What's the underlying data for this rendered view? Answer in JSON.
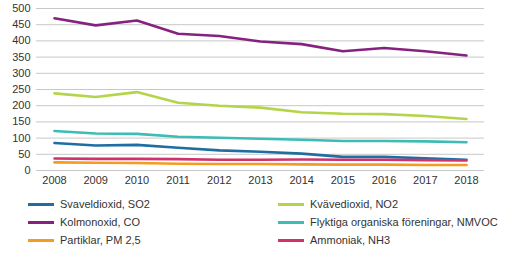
{
  "chart_data": {
    "type": "line",
    "x": [
      2008,
      2009,
      2010,
      2011,
      2012,
      2013,
      2014,
      2015,
      2016,
      2017,
      2018
    ],
    "xlim": [
      2008,
      2018
    ],
    "xticks": [
      2008,
      2009,
      2010,
      2011,
      2012,
      2013,
      2014,
      2015,
      2016,
      2017,
      2018
    ],
    "ylim": [
      0,
      500
    ],
    "yticks": [
      0,
      50,
      100,
      150,
      200,
      250,
      300,
      350,
      400,
      450,
      500
    ],
    "grid": true,
    "legend": "bottom",
    "series": [
      {
        "name": "Svaveldioxid, SO2",
        "color": "#1f6ea3",
        "values": [
          85,
          77,
          79,
          70,
          62,
          58,
          52,
          42,
          42,
          38,
          33
        ]
      },
      {
        "name": "Kvävedioxid, NO2",
        "color": "#b4d44a",
        "values": [
          238,
          227,
          242,
          209,
          200,
          194,
          180,
          175,
          174,
          168,
          159
        ]
      },
      {
        "name": "Kolmonoxid, CO",
        "color": "#86217f",
        "values": [
          470,
          448,
          463,
          422,
          415,
          398,
          390,
          368,
          378,
          368,
          355
        ]
      },
      {
        "name": "Flyktiga organiska föreningar, NMVOC",
        "color": "#3cbcb4",
        "values": [
          122,
          114,
          113,
          104,
          101,
          98,
          95,
          91,
          91,
          90,
          87
        ]
      },
      {
        "name": "Partiklar, PM 2,5",
        "color": "#f39c1f",
        "values": [
          25,
          24,
          23,
          21,
          20,
          20,
          19,
          18,
          18,
          17,
          17
        ]
      },
      {
        "name": "Ammoniak, NH3",
        "color": "#d0336c",
        "values": [
          37,
          36,
          36,
          35,
          33,
          33,
          34,
          33,
          33,
          32,
          31
        ]
      }
    ]
  }
}
